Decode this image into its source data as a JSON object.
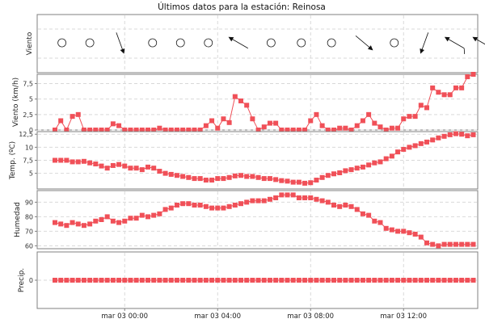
{
  "title": "Últimos datos para la estación: Reinosa",
  "colors": {
    "series": "#f05058",
    "series_line": "#f05058",
    "frame": "#808080",
    "grid": "#d9d9d9"
  },
  "x_ticks": [
    {
      "hour": 3,
      "label": "mar 03 00:00"
    },
    {
      "hour": 7,
      "label": "mar 03 04:00"
    },
    {
      "hour": 11,
      "label": "mar 03 08:00"
    },
    {
      "hour": 15,
      "label": "mar 03 12:00"
    }
  ],
  "wind_direction": {
    "ylabel": "Viento",
    "symbols": [
      {
        "hour": 0.3,
        "type": "calm"
      },
      {
        "hour": 1.5,
        "type": "calm"
      },
      {
        "hour": 2.8,
        "type": "arrow",
        "dir": 340,
        "barbs": 0
      },
      {
        "hour": 4.2,
        "type": "calm"
      },
      {
        "hour": 5.4,
        "type": "calm"
      },
      {
        "hour": 6.6,
        "type": "calm"
      },
      {
        "hour": 7.9,
        "type": "arrow",
        "dir": 120,
        "barbs": 0
      },
      {
        "hour": 9.3,
        "type": "calm"
      },
      {
        "hour": 10.6,
        "type": "calm"
      },
      {
        "hour": 11.9,
        "type": "calm"
      },
      {
        "hour": 13.3,
        "type": "arrow",
        "dir": 310,
        "barbs": 0
      },
      {
        "hour": 14.6,
        "type": "calm"
      },
      {
        "hour": 15.9,
        "type": "arrow",
        "dir": 20,
        "barbs": 0
      },
      {
        "hour": 17.2,
        "type": "arrow",
        "dir": 120,
        "barbs": 1
      },
      {
        "hour": 18.4,
        "type": "arrow",
        "dir": 120,
        "barbs": 1
      }
    ]
  },
  "chart_data": [
    {
      "type": "line",
      "ylabel": "Viento (km/h)",
      "ylim": [
        0,
        9
      ],
      "yticks": [
        0,
        2.5,
        5,
        7.5
      ],
      "ytick_labels": [
        "0",
        "2,5",
        "5",
        "7,5"
      ],
      "x_unit": "hours since mar 02 21:00",
      "x_start": 0,
      "x_step": 0.25,
      "values": [
        0,
        1.5,
        0,
        2.2,
        2.5,
        0,
        0,
        0,
        0,
        0,
        1,
        0.7,
        0,
        0,
        0,
        0,
        0,
        0,
        0.3,
        0,
        0,
        0,
        0,
        0,
        0,
        0,
        0.7,
        1.5,
        0.3,
        1.8,
        1.2,
        5.4,
        4.7,
        4,
        1.8,
        0,
        0.5,
        1.1,
        1.1,
        0,
        0,
        0,
        0,
        0,
        1.5,
        2.5,
        0.7,
        0,
        0,
        0.3,
        0.3,
        0,
        0.7,
        1.5,
        2.5,
        1.1,
        0.5,
        0,
        0.3,
        0.3,
        1.8,
        2.2,
        2.2,
        4,
        3.6,
        6.8,
        6.1,
        5.7,
        5.7,
        6.8,
        6.8,
        8.6,
        9
      ]
    },
    {
      "type": "line",
      "ylabel": "Temp. (ºC)",
      "ylim": [
        2,
        13
      ],
      "yticks": [
        5,
        7.5,
        10,
        12.5
      ],
      "ytick_labels": [
        "5",
        "7,5",
        "10",
        "12,5"
      ],
      "x_unit": "hours since mar 02 21:00",
      "x_start": 0,
      "x_step": 0.25,
      "values": [
        7.5,
        7.5,
        7.5,
        7.2,
        7.2,
        7.3,
        7,
        6.8,
        6.4,
        6,
        6.5,
        6.7,
        6.4,
        6,
        6,
        5.7,
        6.2,
        6,
        5.4,
        5,
        4.8,
        4.6,
        4.4,
        4.2,
        4,
        4,
        3.7,
        3.7,
        4,
        4,
        4.2,
        4.5,
        4.6,
        4.4,
        4.4,
        4.2,
        4,
        4,
        3.8,
        3.6,
        3.5,
        3.3,
        3.3,
        3.1,
        3.2,
        3.7,
        4.2,
        4.6,
        4.9,
        5.1,
        5.5,
        5.7,
        6,
        6.2,
        6.6,
        7,
        7.2,
        7.8,
        8.3,
        9.1,
        9.6,
        10,
        10.3,
        10.7,
        11,
        11.4,
        11.8,
        12.1,
        12.4,
        12.6,
        12.5,
        12.2,
        12.4
      ]
    },
    {
      "type": "line",
      "ylabel": "Humedad",
      "ylim": [
        58,
        98
      ],
      "yticks": [
        60,
        70,
        80,
        90
      ],
      "ytick_labels": [
        "60",
        "70",
        "80",
        "90"
      ],
      "x_unit": "hours since mar 02 21:00",
      "x_start": 0,
      "x_step": 0.25,
      "values": [
        76,
        75,
        74,
        76,
        75,
        74,
        75,
        77,
        78,
        80,
        77,
        76,
        77,
        79,
        79,
        81,
        80,
        81,
        82,
        85,
        86,
        88,
        89,
        89,
        88,
        88,
        87,
        86,
        86,
        86,
        87,
        88,
        89,
        90,
        91,
        91,
        91,
        92,
        93,
        95,
        95,
        95,
        93,
        93,
        93,
        92,
        91,
        90,
        88,
        87,
        88,
        87,
        85,
        82,
        81,
        77,
        76,
        72,
        71,
        70,
        70,
        69,
        68,
        66,
        62,
        61,
        60,
        61,
        61,
        61,
        61,
        61,
        61
      ]
    },
    {
      "type": "line",
      "ylabel": "Precip.",
      "ylim": [
        -1,
        1
      ],
      "yticks": [
        0
      ],
      "ytick_labels": [
        "0"
      ],
      "x_unit": "hours since mar 02 21:00",
      "x_start": 0,
      "x_step": 0.25,
      "values": [
        0,
        0,
        0,
        0,
        0,
        0,
        0,
        0,
        0,
        0,
        0,
        0,
        0,
        0,
        0,
        0,
        0,
        0,
        0,
        0,
        0,
        0,
        0,
        0,
        0,
        0,
        0,
        0,
        0,
        0,
        0,
        0,
        0,
        0,
        0,
        0,
        0,
        0,
        0,
        0,
        0,
        0,
        0,
        0,
        0,
        0,
        0,
        0,
        0,
        0,
        0,
        0,
        0,
        0,
        0,
        0,
        0,
        0,
        0,
        0,
        0,
        0,
        0,
        0,
        0,
        0,
        0,
        0,
        0,
        0,
        0,
        0,
        0
      ]
    }
  ]
}
